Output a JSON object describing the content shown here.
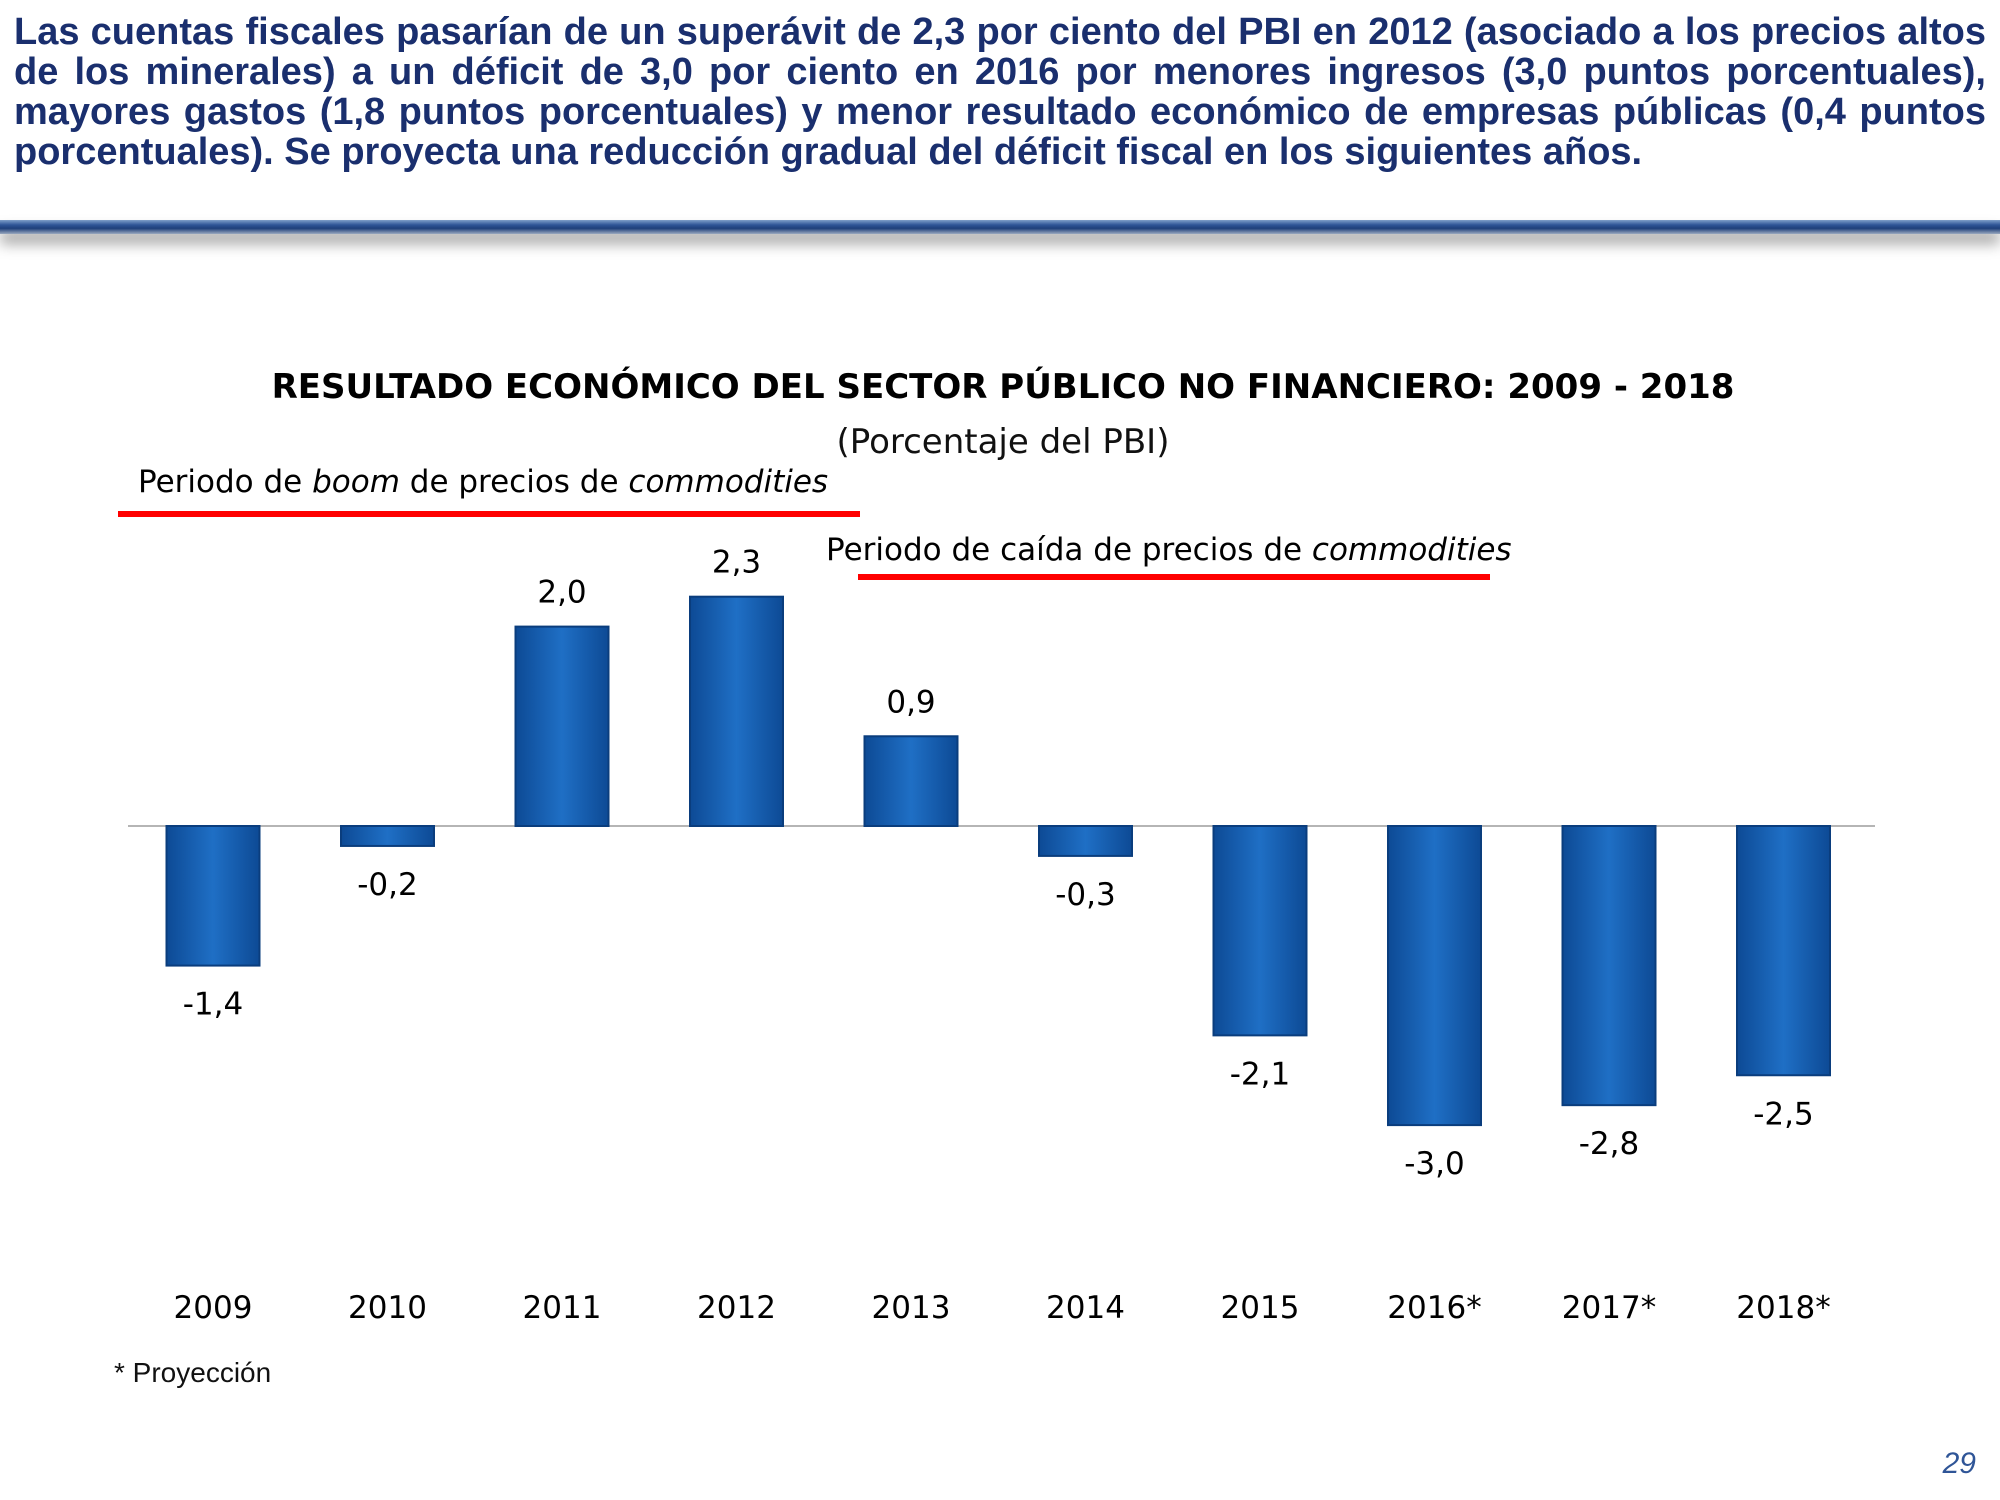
{
  "headline": "Las cuentas fiscales pasarían de un superávit de 2,3 por ciento del PBI en 2012 (asociado a los precios altos de los minerales) a un déficit de 3,0 por ciento en 2016 por menores ingresos (3,0 puntos porcentuales), mayores gastos (1,8 puntos porcentuales) y menor resultado económico de empresas públicas (0,4 puntos porcentuales). Se proyecta una reducción gradual del déficit fiscal en los siguientes años.",
  "chart_data": {
    "type": "bar",
    "title": "RESULTADO ECONÓMICO DEL SECTOR PÚBLICO NO FINANCIERO: 2009 - 2018",
    "subtitle": "(Porcentaje del PBI)",
    "categories": [
      "2009",
      "2010",
      "2011",
      "2012",
      "2013",
      "2014",
      "2015",
      "2016*",
      "2017*",
      "2018*"
    ],
    "values": [
      -1.4,
      -0.2,
      2.0,
      2.3,
      0.9,
      -0.3,
      -2.1,
      -3.0,
      -2.8,
      -2.5
    ],
    "value_labels": [
      "-1,4",
      "-0,2",
      "2,0",
      "2,3",
      "0,9",
      "-0,3",
      "-2,1",
      "-3,0",
      "-2,8",
      "-2,5"
    ],
    "ylim": [
      -3.0,
      2.3
    ],
    "grid": false,
    "legend": "none",
    "bar_color": "#1f6fc5",
    "annotations": [
      {
        "id": "boom",
        "parts": [
          {
            "text": "Periodo de ",
            "italic": false
          },
          {
            "text": "boom",
            "italic": true
          },
          {
            "text": " de precios de ",
            "italic": false
          },
          {
            "text": "commodities",
            "italic": true
          }
        ],
        "from_category": "2009",
        "to_category": "2013",
        "line_color": "#ff0000"
      },
      {
        "id": "fall",
        "parts": [
          {
            "text": "Periodo de caída de precios de ",
            "italic": false
          },
          {
            "text": "commodities",
            "italic": true
          }
        ],
        "from_category": "2013",
        "to_category": "2017*",
        "line_color": "#ff0000"
      }
    ]
  },
  "footnote": "* Proyección",
  "page_number": "29"
}
